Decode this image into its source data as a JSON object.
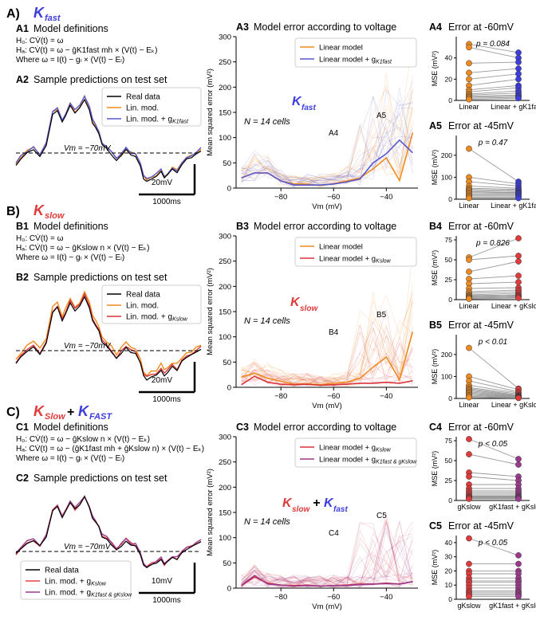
{
  "colors": {
    "fast": "#3d3ddb",
    "slow": "#e03a3a",
    "orange": "#ef8a1f",
    "blue_line": "#5858cf",
    "red_line": "#d9343a",
    "purple": "#9b3a8c",
    "lin_mod_c": "#e8424a",
    "combo_line": "#b0507f",
    "black": "#000000"
  },
  "panels": {
    "A": {
      "letter": "A)",
      "title_main": "K",
      "title_sub": "fast",
      "A1": {
        "label": "A1",
        "title": "Model definitions",
        "eq_h0": "H₀: CV̇(t) = ω",
        "eq_ha": "Hₐ: CV̇(t) = ω − ḡK1fast mh × (V(t) − Eₖ)",
        "eq_where": "Where ω = I(t) − gₗ × (V(t) − Eₗ)"
      },
      "A2": {
        "label": "A2",
        "title": "Sample predictions on test set",
        "legend": [
          "Real data",
          "Lin. mod.",
          "Lin. mod. + g"
        ],
        "legend_sub": "K1fast",
        "vm_label": "Vm = −70mV",
        "scale_v": "20mV",
        "scale_t": "1000ms"
      },
      "A3": {
        "label": "A3",
        "title": "Model error according to voltage",
        "legend": [
          "Linear model",
          "Linear model + g"
        ],
        "legend_sub": "K1fast",
        "overlay_main": "K",
        "overlay_sub": "fast",
        "n_cells": "N = 14 cells",
        "mark1": "A4",
        "mark2": "A5"
      },
      "A4": {
        "label": "A4",
        "title": "Error at -60mV",
        "pval": "p = 0.084",
        "x1": "Linear",
        "x2": "Linear + gK1fast"
      },
      "A5": {
        "label": "A5",
        "title": "Error at -45mV",
        "pval": "p = 0.47",
        "x1": "Linear",
        "x2": "Linear + gK1fast"
      }
    },
    "B": {
      "letter": "B)",
      "title_main": "K",
      "title_sub": "slow",
      "B1": {
        "label": "B1",
        "title": "Model definitions",
        "eq_h0": "H₀: CV̇(t) = ω",
        "eq_ha": "Hₐ: CV̇(t) = ω − ḡKslow n × (V(t) − Eₖ)",
        "eq_where": "Where ω = I(t) − gₗ × (V(t) − Eₗ)"
      },
      "B2": {
        "label": "B2",
        "title": "Sample predictions on test set",
        "legend": [
          "Real data",
          "Lin. mod.",
          "Lin. mod. + g"
        ],
        "legend_sub": "Kslow",
        "vm_label": "Vm = −70mV",
        "scale_v": "20mV",
        "scale_t": "1000ms"
      },
      "B3": {
        "label": "B3",
        "title": "Model error according to voltage",
        "legend": [
          "Linear model",
          "Linear model + g"
        ],
        "legend_sub": "Kslow",
        "overlay_main": "K",
        "overlay_sub": "slow",
        "n_cells": "N = 14 cells",
        "mark1": "B4",
        "mark2": "B5"
      },
      "B4": {
        "label": "B4",
        "title": "Error at -60mV",
        "pval": "p = 0.826",
        "x1": "Linear",
        "x2": "Linear + gKslow"
      },
      "B5": {
        "label": "B5",
        "title": "Error at -45mV",
        "pval": "p < 0.01",
        "x1": "Linear",
        "x2": "Linear + gKslow"
      }
    },
    "C": {
      "letter": "C)",
      "title_main1": "K",
      "title_sub1": "Slow",
      "title_plus": "+",
      "title_main2": "K",
      "title_sub2": "FAST",
      "C1": {
        "label": "C1",
        "title": "Model definitions",
        "eq_h0": "H₀: CV̇(t) = ω − ḡKslow n × (V(t) − Eₖ)",
        "eq_ha": "Hₐ: CV̇(t) = ω − (ḡK1fast mh + ḡKslow n) × (V(t) − Eₖ)",
        "eq_where": "Where ω = I(t) − gₗ × (V(t) − Eₗ)"
      },
      "C2": {
        "label": "C2",
        "title": "Sample predictions on test set",
        "legend": [
          "Real data",
          "Lin. mod. + g",
          "Lin. mod. + g"
        ],
        "legend_sub2": "Kslow",
        "legend_sub3": "K1fast & gKslow",
        "vm_label": "Vm = −70mV",
        "scale_v": "10mV",
        "scale_t": "1000ms"
      },
      "C3": {
        "label": "C3",
        "title": "Model error according to voltage",
        "legend": [
          "Linear model + g",
          "Linear model + g"
        ],
        "legend_sub1": "Kslow",
        "legend_sub2": "K1fast & gKslow",
        "overlay_main1": "K",
        "overlay_sub1": "slow",
        "overlay_plus": "+",
        "overlay_main2": "K",
        "overlay_sub2": "fast",
        "n_cells": "N = 14 cells",
        "mark1": "C4",
        "mark2": "C5"
      },
      "C4": {
        "label": "C4",
        "title": "Error at -60mV",
        "pval": "p < 0.05",
        "x1": "gKslow",
        "x2": "gK1fast + gKslow"
      },
      "C5": {
        "label": "C5",
        "title": "Error at -45mV",
        "pval": "p < 0.05",
        "x1": "gKslow",
        "x2": "gK1fast + gKslow"
      }
    }
  },
  "chart_data": [
    {
      "type": "line",
      "id": "A3",
      "title": "Model error according to voltage",
      "xlabel": "Vm (mV)",
      "ylabel": "Mean squared error (mV²)",
      "xlim": [
        -97,
        -28
      ],
      "ylim": [
        0,
        300
      ],
      "xticks": [
        -80,
        -60,
        -40
      ],
      "yticks": [
        0,
        50,
        100,
        150,
        200,
        250,
        300
      ],
      "series": [
        {
          "name": "Linear model",
          "color": "#ef8a1f",
          "x": [
            -95,
            -90,
            -85,
            -80,
            -75,
            -70,
            -65,
            -60,
            -55,
            -50,
            -45,
            -40,
            -35,
            -30
          ],
          "y": [
            20,
            30,
            30,
            14,
            8,
            8,
            5,
            9,
            14,
            20,
            38,
            60,
            15,
            110
          ]
        },
        {
          "name": "Linear model + gK1fast",
          "color": "#5858cf",
          "x": [
            -95,
            -90,
            -85,
            -80,
            -75,
            -70,
            -65,
            -60,
            -55,
            -50,
            -45,
            -40,
            -35,
            -30
          ],
          "y": [
            20,
            30,
            30,
            14,
            6,
            6,
            6,
            8,
            12,
            18,
            50,
            68,
            95,
            70
          ]
        }
      ]
    },
    {
      "type": "line",
      "id": "B3",
      "title": "Model error according to voltage",
      "xlabel": "Vm (mV)",
      "ylabel": "Mean squared error (mV²)",
      "xlim": [
        -97,
        -28
      ],
      "ylim": [
        0,
        300
      ],
      "xticks": [
        -80,
        -60,
        -40
      ],
      "yticks": [
        0,
        50,
        100,
        150,
        200,
        250,
        300
      ],
      "series": [
        {
          "name": "Linear model",
          "color": "#ef8a1f",
          "x": [
            -95,
            -90,
            -85,
            -80,
            -75,
            -70,
            -65,
            -60,
            -55,
            -50,
            -45,
            -40,
            -35,
            -30
          ],
          "y": [
            20,
            28,
            18,
            12,
            6,
            7,
            5,
            8,
            10,
            18,
            40,
            60,
            15,
            110
          ]
        },
        {
          "name": "Linear model + gKslow",
          "color": "#d9343a",
          "x": [
            -95,
            -90,
            -85,
            -80,
            -75,
            -70,
            -65,
            -60,
            -55,
            -50,
            -45,
            -40,
            -35,
            -30
          ],
          "y": [
            5,
            22,
            10,
            6,
            5,
            6,
            4,
            5,
            6,
            8,
            8,
            10,
            8,
            13
          ]
        }
      ]
    },
    {
      "type": "line",
      "id": "C3",
      "title": "Model error according to voltage",
      "xlabel": "Vm (mV)",
      "ylabel": "Mean squared error (mV²)",
      "xlim": [
        -97,
        -28
      ],
      "ylim": [
        0,
        300
      ],
      "xticks": [
        -80,
        -60,
        -40
      ],
      "yticks": [
        0,
        50,
        100,
        150,
        200,
        250,
        300
      ],
      "series": [
        {
          "name": "Linear model + gKslow",
          "color": "#d9343a",
          "x": [
            -95,
            -90,
            -85,
            -80,
            -75,
            -70,
            -65,
            -60,
            -55,
            -50,
            -45,
            -40,
            -35,
            -30
          ],
          "y": [
            5,
            22,
            10,
            6,
            5,
            6,
            4,
            5,
            6,
            8,
            8,
            10,
            8,
            13
          ]
        },
        {
          "name": "Linear model + gK1fast & gKslow",
          "color": "#9b3a8c",
          "x": [
            -95,
            -90,
            -85,
            -80,
            -75,
            -70,
            -65,
            -60,
            -55,
            -50,
            -45,
            -40,
            -35,
            -30
          ],
          "y": [
            5,
            25,
            8,
            6,
            4,
            5,
            4,
            5,
            5,
            7,
            8,
            9,
            8,
            13
          ]
        }
      ]
    },
    {
      "type": "scatter",
      "id": "A4",
      "ylabel": "MSE (mV²)",
      "ylim": [
        0,
        60
      ],
      "yticks": [
        0,
        20,
        40
      ],
      "categories": [
        "Linear",
        "Linear + gK1fast"
      ],
      "left": [
        53,
        50,
        35,
        26,
        20,
        14,
        10,
        8,
        6,
        5,
        4,
        3,
        2,
        1
      ],
      "right": [
        45,
        40,
        36,
        30,
        25,
        20,
        14,
        12,
        9,
        7,
        5,
        4,
        3,
        2
      ]
    },
    {
      "type": "scatter",
      "id": "A5",
      "ylabel": "MSE (mV²)",
      "ylim": [
        0,
        290
      ],
      "yticks": [
        0,
        100,
        200
      ],
      "categories": [
        "Linear",
        "Linear + gK1fast"
      ],
      "left": [
        230,
        100,
        80,
        60,
        50,
        45,
        40,
        35,
        30,
        25,
        20,
        15,
        10,
        5
      ],
      "right": [
        80,
        70,
        60,
        50,
        45,
        40,
        35,
        30,
        28,
        25,
        20,
        15,
        10,
        5
      ]
    },
    {
      "type": "scatter",
      "id": "B4",
      "ylabel": "MSE (mV²)",
      "ylim": [
        0,
        80
      ],
      "yticks": [
        0,
        25,
        50,
        75
      ],
      "categories": [
        "Linear",
        "Linear + gKslow"
      ],
      "left": [
        53,
        50,
        35,
        26,
        20,
        14,
        10,
        8,
        6,
        5,
        4,
        3,
        2,
        1
      ],
      "right": [
        77,
        55,
        48,
        30,
        22,
        15,
        12,
        10,
        8,
        6,
        5,
        4,
        3,
        2
      ]
    },
    {
      "type": "scatter",
      "id": "B5",
      "ylabel": "MSE (mV²)",
      "ylim": [
        0,
        290
      ],
      "yticks": [
        0,
        100,
        200
      ],
      "categories": [
        "Linear",
        "Linear + gKslow"
      ],
      "left": [
        230,
        100,
        80,
        60,
        50,
        45,
        40,
        35,
        30,
        25,
        20,
        15,
        10,
        5
      ],
      "right": [
        45,
        40,
        30,
        25,
        20,
        15,
        12,
        10,
        8,
        6,
        5,
        4,
        3,
        2
      ]
    },
    {
      "type": "scatter",
      "id": "C4",
      "ylabel": "MSE (mV²)",
      "ylim": [
        0,
        80
      ],
      "yticks": [
        0,
        25,
        50,
        75
      ],
      "categories": [
        "gKslow",
        "gK1fast + gKslow"
      ],
      "left": [
        77,
        58,
        35,
        30,
        20,
        15,
        12,
        10,
        8,
        6,
        5,
        4,
        3,
        2
      ],
      "right": [
        52,
        45,
        30,
        25,
        20,
        15,
        12,
        10,
        8,
        6,
        5,
        4,
        3,
        2
      ]
    },
    {
      "type": "scatter",
      "id": "C5",
      "ylabel": "MSE (mV²)",
      "ylim": [
        0,
        45
      ],
      "yticks": [
        0,
        10,
        20,
        30,
        40
      ],
      "categories": [
        "gKslow",
        "gK1fast + gKslow"
      ],
      "left": [
        43,
        25,
        20,
        18,
        15,
        13,
        12,
        10,
        8,
        6,
        5,
        4,
        3,
        2
      ],
      "right": [
        31,
        25,
        20,
        18,
        15,
        13,
        12,
        10,
        8,
        6,
        5,
        4,
        3,
        2
      ]
    }
  ]
}
